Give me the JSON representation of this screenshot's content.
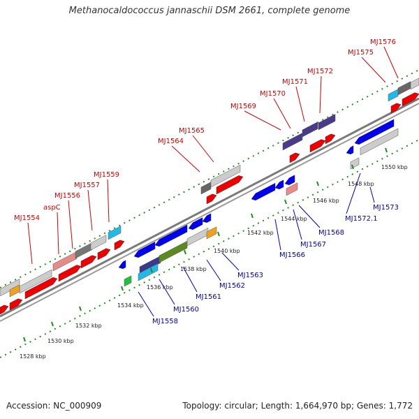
{
  "title": "Methanocaldococcus jannaschii DSM 2661, complete genome",
  "footer": {
    "accession": "Accession: NC_000909",
    "summary": "Topology: circular; Length: 1,664,970 bp; Genes: 1,772"
  },
  "colors": {
    "top_label": "#cc0000",
    "bottom_label": "#0000aa",
    "backbone": "#808080",
    "dot_track": "#228b22",
    "tick": "#228b22"
  },
  "scale_ticks": [
    "1528 kbp",
    "1530 kbp",
    "1532 kbp",
    "1534 kbp",
    "1536 kbp",
    "1538 kbp",
    "1540 kbp",
    "1542 kbp",
    "1544 kbp",
    "1546 kbp",
    "1548 kbp",
    "1550 kbp"
  ],
  "top_labels": [
    "MJ1554",
    "aspC",
    "MJ1556",
    "MJ1557",
    "MJ1559",
    "MJ1564",
    "MJ1565",
    "MJ1569",
    "MJ1570",
    "MJ1571",
    "MJ1572",
    "MJ1575",
    "MJ1576"
  ],
  "bottom_labels": [
    "MJ1558",
    "MJ1560",
    "MJ1561",
    "MJ1562",
    "MJ1563",
    "MJ1566",
    "MJ1567",
    "MJ1568",
    "MJ1572.1",
    "MJ1573"
  ]
}
